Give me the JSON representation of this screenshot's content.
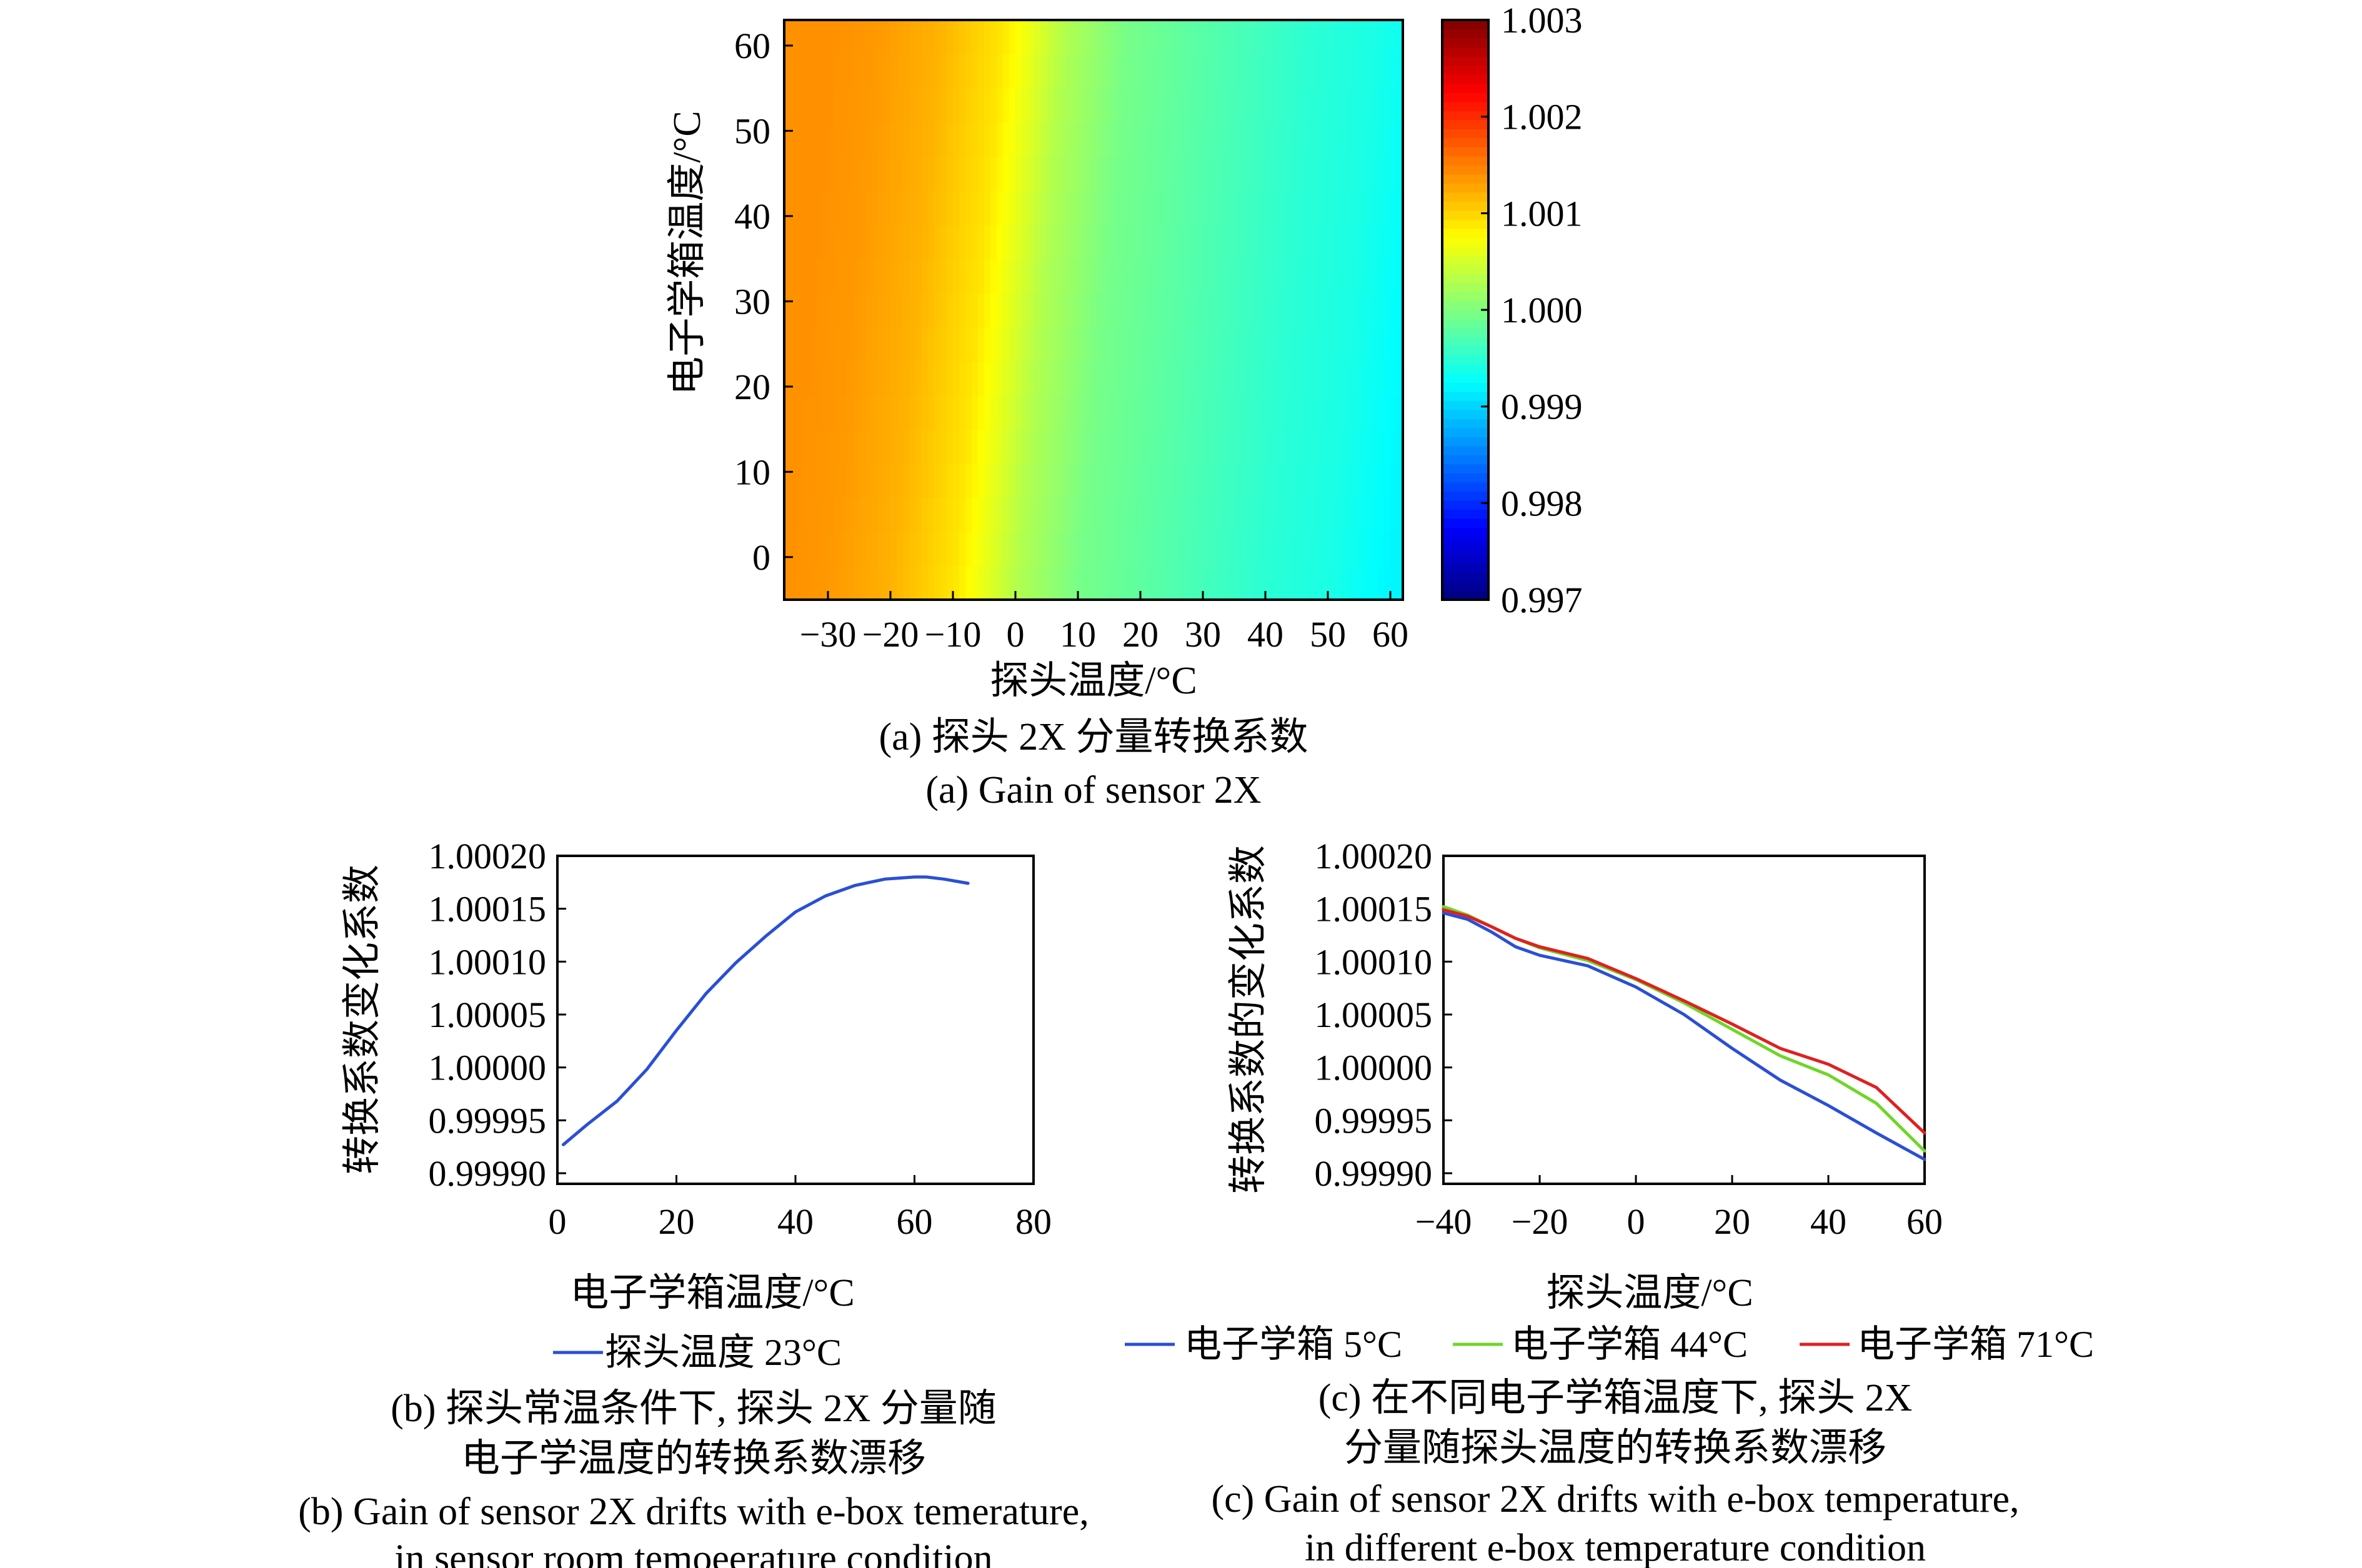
{
  "colors": {
    "sensor_23C": "#2a4fd6",
    "ebox_5C": "#2a4fd6",
    "ebox_44C": "#6fd628",
    "ebox_71C": "#e02020"
  },
  "chart_data": [
    {
      "id": "a",
      "type": "heatmap",
      "xlabel": "探头温度/°C",
      "ylabel": "电子学箱温度/°C",
      "x_ticks": [
        "−30",
        "−20",
        "−10",
        "0",
        "10",
        "20",
        "30",
        "40",
        "50",
        "60"
      ],
      "y_ticks": [
        "60",
        "50",
        "40",
        "30",
        "20",
        "10",
        "0"
      ],
      "xlim": [
        -37,
        62
      ],
      "ylim": [
        -5,
        63
      ],
      "colorbar": {
        "range": [
          0.997,
          1.003
        ],
        "ticks": [
          "1.003",
          "1.002",
          "1.001",
          "1.000",
          "0.999",
          "0.998",
          "0.997"
        ],
        "colormap": "jet"
      },
      "x_profile": {
        "x": [
          -37,
          -30,
          -20,
          -10,
          0,
          10,
          20,
          30,
          40,
          50,
          60,
          62
        ],
        "values": [
          1.0014,
          1.00135,
          1.0012,
          1.0009,
          1.0003,
          0.99995,
          0.9998,
          0.99965,
          0.9995,
          0.9994,
          0.9992,
          0.9992
        ]
      },
      "caption_zh": "(a) 探头 2X 分量转换系数",
      "caption_en": "(a) Gain of sensor 2X"
    },
    {
      "id": "b",
      "type": "line",
      "xlabel": "电子学箱温度/°C",
      "ylabel": "转换系数变化系数",
      "x_ticks": [
        "0",
        "20",
        "40",
        "60",
        "80"
      ],
      "y_ticks": [
        "1.00020",
        "1.00015",
        "1.00010",
        "1.00005",
        "1.00000",
        "0.99995",
        "0.99990"
      ],
      "xlim": [
        0,
        80
      ],
      "ylim": [
        0.99989,
        1.0002
      ],
      "series": [
        {
          "name": "探头温度 23°C",
          "color_key": "sensor_23C",
          "x": [
            1,
            5,
            10,
            15,
            20,
            25,
            30,
            35,
            40,
            45,
            50,
            55,
            60,
            62,
            65,
            69
          ],
          "y": [
            0.999927,
            0.999946,
            0.999968,
            0.999998,
            1.000035,
            1.00007,
            1.000099,
            1.000124,
            1.000147,
            1.000162,
            1.000172,
            1.000178,
            1.00018,
            1.00018,
            1.000178,
            1.000174
          ]
        }
      ],
      "caption_zh_1": "(b) 探头常温条件下, 探头 2X 分量随",
      "caption_zh_2": "电子学温度的转换系数漂移",
      "caption_en_1": "(b) Gain of sensor 2X drifts with e-box temerature,",
      "caption_en_2": "in sensor room temoeerature condition"
    },
    {
      "id": "c",
      "type": "line",
      "xlabel": "探头温度/°C",
      "ylabel": "转换系数的变化系数",
      "x_ticks": [
        "−40",
        "−20",
        "0",
        "20",
        "40",
        "60"
      ],
      "y_ticks": [
        "1.00020",
        "1.00015",
        "1.00010",
        "1.00005",
        "1.00000",
        "0.99995",
        "0.99990"
      ],
      "xlim": [
        -40,
        60
      ],
      "ylim": [
        0.99989,
        1.0002
      ],
      "series": [
        {
          "name": "电子学箱 5°C",
          "color_key": "ebox_5C",
          "x": [
            -40,
            -35,
            -30,
            -25,
            -20,
            -10,
            0,
            10,
            20,
            30,
            40,
            50,
            60
          ],
          "y": [
            1.000146,
            1.00014,
            1.000128,
            1.000114,
            1.000106,
            1.000096,
            1.000076,
            1.00005,
            1.000018,
            0.999988,
            0.999964,
            0.999938,
            0.999913
          ]
        },
        {
          "name": "电子学箱 44°C",
          "color_key": "ebox_44C",
          "x": [
            -40,
            -35,
            -30,
            -25,
            -20,
            -10,
            0,
            10,
            20,
            30,
            40,
            50,
            60
          ],
          "y": [
            1.000152,
            1.000144,
            1.000133,
            1.000122,
            1.000113,
            1.000101,
            1.000083,
            1.000061,
            1.000036,
            1.000011,
            0.999993,
            0.999966,
            0.999921
          ]
        },
        {
          "name": "电子学箱 71°C",
          "color_key": "ebox_71C",
          "x": [
            -40,
            -35,
            -30,
            -25,
            -20,
            -10,
            0,
            10,
            20,
            30,
            40,
            50,
            60
          ],
          "y": [
            1.000149,
            1.000143,
            1.000133,
            1.000122,
            1.000114,
            1.000103,
            1.000084,
            1.000063,
            1.000041,
            1.000018,
            1.000003,
            0.999981,
            0.999938
          ]
        }
      ],
      "caption_zh_1": "(c) 在不同电子学箱温度下, 探头 2X",
      "caption_zh_2": "分量随探头温度的转换系数漂移",
      "caption_en_1": "(c) Gain of sensor 2X drifts with e-box temperature,",
      "caption_en_2": "in different e-box temperature condition"
    }
  ]
}
